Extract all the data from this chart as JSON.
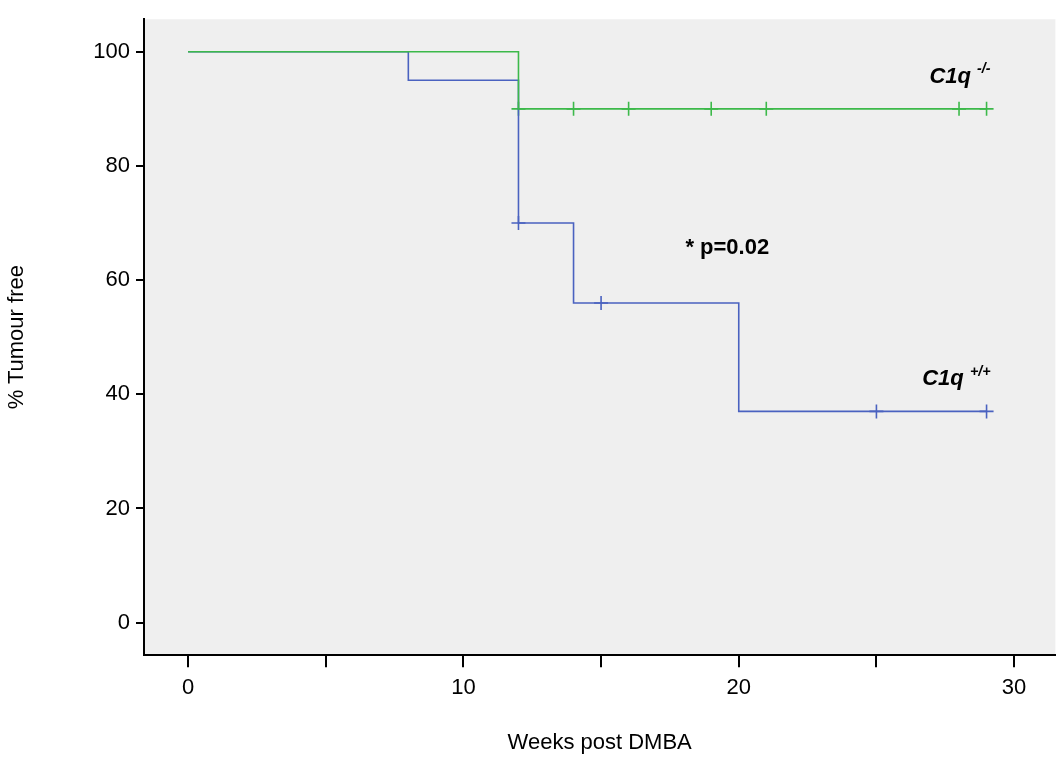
{
  "chart_data": {
    "type": "step",
    "xlabel": "Weeks post DMBA",
    "ylabel": "% Tumour free",
    "xlim": [
      -1.6,
      31.5
    ],
    "ylim": [
      -5.7,
      105.7
    ],
    "xticks": [
      0,
      {
        "value": 5,
        "label": null
      },
      10,
      {
        "value": 15,
        "label": null
      },
      20,
      {
        "value": 25,
        "label": null
      },
      30
    ],
    "yticks": [
      0,
      20,
      40,
      60,
      80,
      100
    ],
    "grid": false,
    "legend": false,
    "series": [
      {
        "name": "C1q $^{-/-}$",
        "marker": "none",
        "color": "#3cb94a",
        "x": [
          0,
          12,
          29
        ],
        "values": [
          100,
          90,
          90
        ]
      },
      {
        "name": "C1q $^{+/+}$",
        "marker": "none",
        "color": "#4a62c0",
        "x": [
          0,
          8,
          12,
          14,
          20,
          29
        ],
        "values": [
          100,
          95,
          70,
          56,
          37,
          37
        ]
      },
      {
        "type": "scatter",
        "marker": "cross",
        "color": "#3cb94a",
        "x": [
          12,
          14,
          16,
          19,
          21,
          28,
          29
        ],
        "values": [
          90,
          90,
          90,
          90,
          90,
          90,
          90
        ]
      },
      {
        "type": "scatter",
        "marker": "cross",
        "color": "#4a62c0",
        "x": [
          12,
          15,
          25,
          29
        ],
        "values": [
          70,
          56,
          37,
          37
        ]
      }
    ],
    "annotations": [
      "* p=0.02"
    ]
  }
}
